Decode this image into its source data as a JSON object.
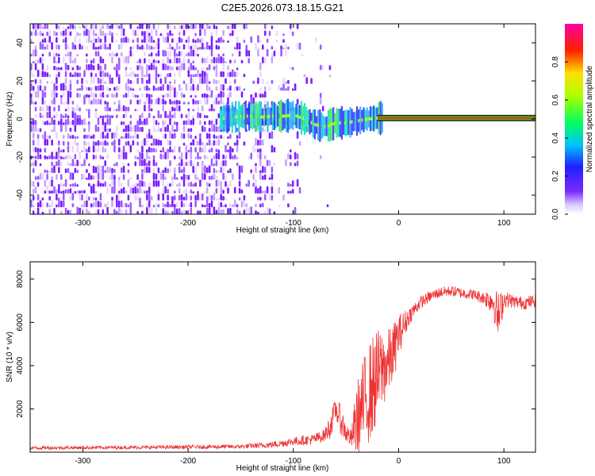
{
  "title": "C2E5.2026.073.18.15.G21",
  "chart_data": [
    {
      "type": "heatmap",
      "name": "spectrogram",
      "xlabel": "Height of straight line (km)",
      "ylabel": "Frequency (Hz)",
      "xlim": [
        -350,
        130
      ],
      "ylim": [
        -50,
        50
      ],
      "xticks": [
        -300,
        -200,
        -100,
        0,
        100
      ],
      "yticks": [
        -40,
        -20,
        0,
        20,
        40
      ],
      "ridge": {
        "x": [
          -170,
          -150,
          -140,
          -130,
          -120,
          -110,
          -100,
          -90,
          -80,
          -70,
          -60,
          -50,
          -40,
          -30,
          -20,
          0,
          50,
          100,
          130
        ],
        "freq": [
          0,
          1.5,
          1.5,
          1,
          1.5,
          1.5,
          2,
          0,
          -3,
          -4,
          -2,
          -2,
          -1,
          0,
          0.5,
          0.5,
          0.5,
          0.5,
          0.5
        ]
      },
      "colorbar": {
        "label": "Normalized spectral amplitude",
        "range": [
          0,
          1
        ],
        "ticks": [
          0.0,
          0.2,
          0.4,
          0.6,
          0.8
        ]
      }
    },
    {
      "type": "line",
      "name": "snr",
      "xlabel": "Height of straight line (km)",
      "ylabel": "SNR (10 * v/v)",
      "xlim": [
        -350,
        130
      ],
      "ylim": [
        0,
        8800
      ],
      "xticks": [
        -300,
        -200,
        -100,
        0,
        100
      ],
      "yticks": [
        2000,
        4000,
        6000,
        8000
      ],
      "series": [
        {
          "name": "SNR",
          "color": "#ee3333",
          "x": [
            -350,
            -250,
            -150,
            -120,
            -100,
            -80,
            -70,
            -65,
            -60,
            -55,
            -50,
            -45,
            -40,
            -35,
            -30,
            -25,
            -20,
            -15,
            -10,
            -5,
            0,
            10,
            20,
            30,
            40,
            50,
            60,
            70,
            80,
            90,
            95,
            100,
            110,
            120,
            130
          ],
          "mean": [
            200,
            220,
            260,
            350,
            500,
            600,
            800,
            1200,
            2000,
            1500,
            900,
            600,
            1500,
            2000,
            2600,
            3000,
            3500,
            3900,
            4100,
            4600,
            5400,
            6300,
            6900,
            7200,
            7400,
            7450,
            7350,
            7300,
            7150,
            7000,
            6200,
            7100,
            6950,
            6900,
            7000
          ],
          "amp": [
            80,
            80,
            100,
            150,
            200,
            250,
            300,
            600,
            500,
            700,
            500,
            400,
            1700,
            2100,
            2300,
            2400,
            2200,
            1900,
            1600,
            1400,
            1000,
            400,
            300,
            250,
            250,
            250,
            250,
            250,
            300,
            700,
            1200,
            400,
            300,
            300,
            300
          ]
        }
      ]
    }
  ]
}
